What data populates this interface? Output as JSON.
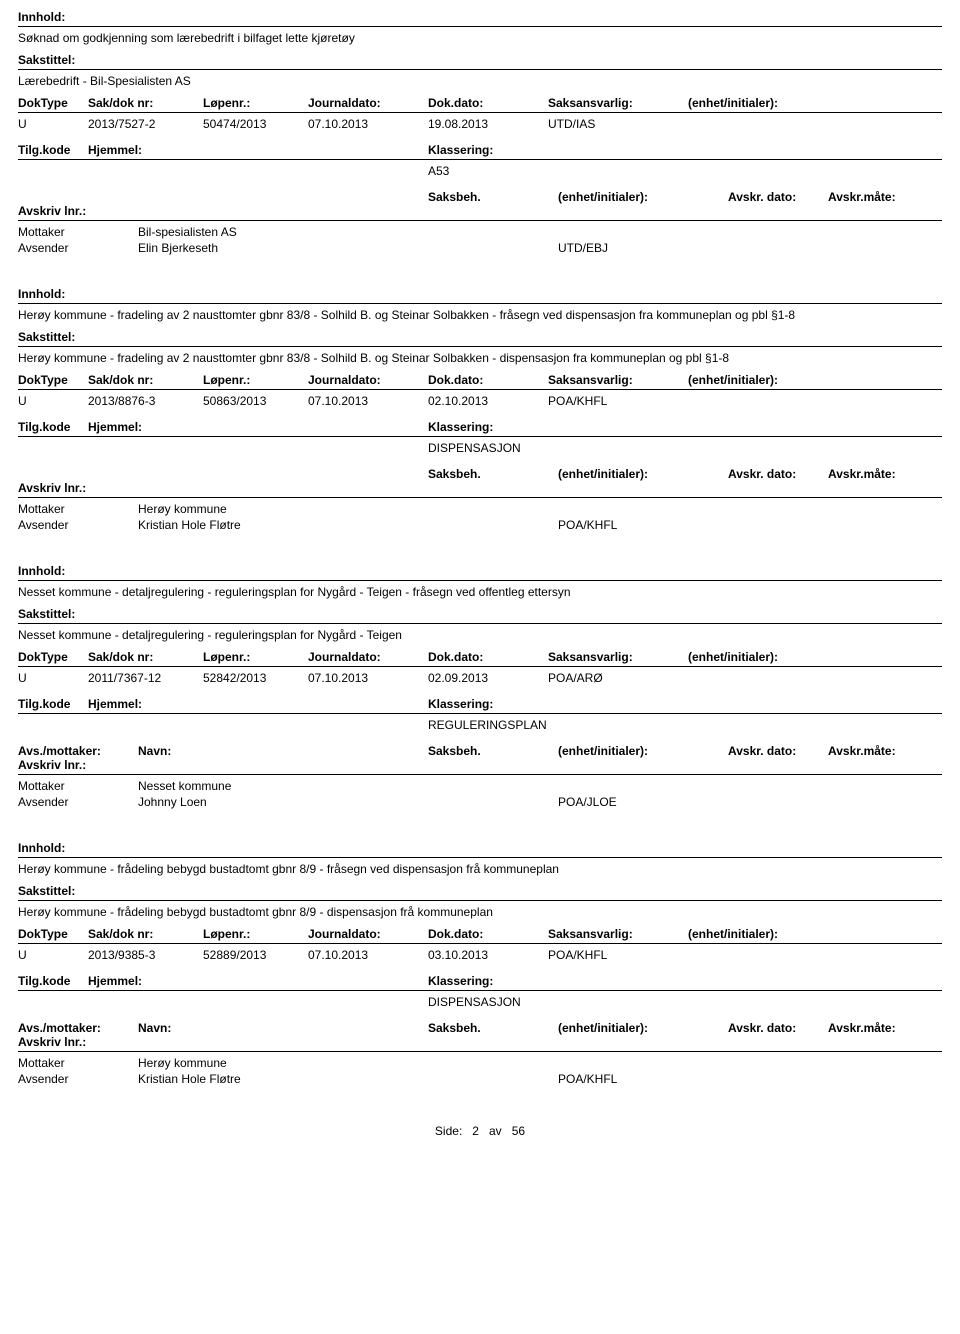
{
  "labels": {
    "innhold": "Innhold:",
    "sakstittel": "Sakstittel:",
    "doktype": "DokType",
    "saknr": "Sak/dok nr:",
    "lopenr": "Løpenr.:",
    "jdate": "Journaldato:",
    "ddate": "Dok.dato:",
    "saksansv": "Saksansvarlig:",
    "enhet": "(enhet/initialer):",
    "tilgkode": "Tilg.kode",
    "hjemmel": "Hjemmel:",
    "klassering": "Klassering:",
    "avsmott": "Avs./mottaker:",
    "navn": "Navn:",
    "saksbeh": "Saksbeh.",
    "avskrdato": "Avskr. dato:",
    "avskrmate": "Avskr.måte:",
    "avskrlnr": "Avskriv lnr.:",
    "mottaker": "Mottaker",
    "avsender": "Avsender"
  },
  "footer": {
    "side_label": "Side:",
    "page": "2",
    "av": "av",
    "total": "56"
  },
  "entries": [
    {
      "innhold": "Søknad om godkjenning som lærebedrift i bilfaget lette kjøretøy",
      "sakstittel": "Lærebedrift - Bil-Spesialisten AS",
      "doktype": "U",
      "saknr": "2013/7527-2",
      "lopenr": "50474/2013",
      "jdate": "07.10.2013",
      "ddate": "19.08.2013",
      "saksansv": "UTD/IAS",
      "enhet": "",
      "tilgkode": "",
      "hjemmel": "",
      "klassering": "A53",
      "show_avs_header": false,
      "parties": [
        {
          "role": "Mottaker",
          "name": "Bil-spesialisten AS",
          "saksbeh": ""
        },
        {
          "role": "Avsender",
          "name": "Elin Bjerkeseth",
          "saksbeh": "UTD/EBJ"
        }
      ]
    },
    {
      "innhold": "Herøy kommune - fradeling av 2 nausttomter gbnr 83/8 - Solhild B. og Steinar Solbakken - fråsegn ved dispensasjon fra kommuneplan og pbl §1-8",
      "sakstittel": "Herøy kommune - fradeling av 2 nausttomter gbnr 83/8 - Solhild B. og Steinar Solbakken - dispensasjon fra kommuneplan og pbl §1-8",
      "doktype": "U",
      "saknr": "2013/8876-3",
      "lopenr": "50863/2013",
      "jdate": "07.10.2013",
      "ddate": "02.10.2013",
      "saksansv": "POA/KHFL",
      "enhet": "",
      "tilgkode": "",
      "hjemmel": "",
      "klassering": "DISPENSASJON",
      "show_avs_header": false,
      "parties": [
        {
          "role": "Mottaker",
          "name": "Herøy kommune",
          "saksbeh": ""
        },
        {
          "role": "Avsender",
          "name": "Kristian Hole Fløtre",
          "saksbeh": "POA/KHFL"
        }
      ]
    },
    {
      "innhold": "Nesset kommune - detaljregulering - reguleringsplan for Nygård - Teigen - fråsegn ved offentleg ettersyn",
      "sakstittel": "Nesset kommune - detaljregulering - reguleringsplan for Nygård - Teigen",
      "doktype": "U",
      "saknr": "2011/7367-12",
      "lopenr": "52842/2013",
      "jdate": "07.10.2013",
      "ddate": "02.09.2013",
      "saksansv": "POA/ARØ",
      "enhet": "",
      "tilgkode": "",
      "hjemmel": "",
      "klassering": "REGULERINGSPLAN",
      "show_avs_header": true,
      "parties": [
        {
          "role": "Mottaker",
          "name": "Nesset kommune",
          "saksbeh": ""
        },
        {
          "role": "Avsender",
          "name": "Johnny Loen",
          "saksbeh": "POA/JLOE"
        }
      ]
    },
    {
      "innhold": "Herøy kommune - frådeling bebygd bustadtomt gbnr 8/9 - fråsegn ved dispensasjon frå kommuneplan",
      "sakstittel": "Herøy kommune - frådeling bebygd bustadtomt gbnr 8/9 - dispensasjon frå kommuneplan",
      "doktype": "U",
      "saknr": "2013/9385-3",
      "lopenr": "52889/2013",
      "jdate": "07.10.2013",
      "ddate": "03.10.2013",
      "saksansv": "POA/KHFL",
      "enhet": "",
      "tilgkode": "",
      "hjemmel": "",
      "klassering": "DISPENSASJON",
      "show_avs_header": true,
      "parties": [
        {
          "role": "Mottaker",
          "name": "Herøy kommune",
          "saksbeh": ""
        },
        {
          "role": "Avsender",
          "name": "Kristian Hole Fløtre",
          "saksbeh": "POA/KHFL"
        }
      ]
    }
  ]
}
